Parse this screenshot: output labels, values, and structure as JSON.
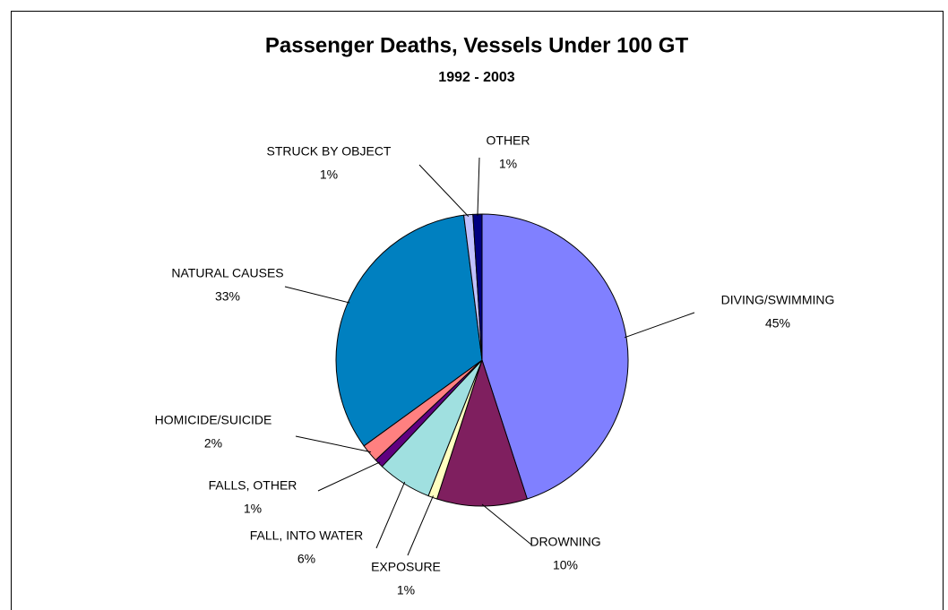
{
  "chart_data": {
    "type": "pie",
    "title": "Passenger Deaths, Vessels Under 100 GT",
    "subtitle": "1992 - 2003",
    "categories": [
      "DIVING/SWIMMING",
      "DROWNING",
      "EXPOSURE",
      "FALL, INTO WATER",
      "FALLS, OTHER",
      "HOMICIDE/SUICIDE",
      "NATURAL CAUSES",
      "STRUCK BY OBJECT",
      "OTHER"
    ],
    "values": [
      45,
      10,
      1,
      6,
      1,
      2,
      33,
      1,
      1
    ],
    "value_labels": [
      "45%",
      "10%",
      "1%",
      "6%",
      "1%",
      "2%",
      "33%",
      "1%",
      "1%"
    ],
    "colors": [
      "#8080ff",
      "#7f1f5f",
      "#ffffc0",
      "#a0e0e0",
      "#600080",
      "#ff8080",
      "#0080c0",
      "#c0c0ff",
      "#000080"
    ]
  }
}
